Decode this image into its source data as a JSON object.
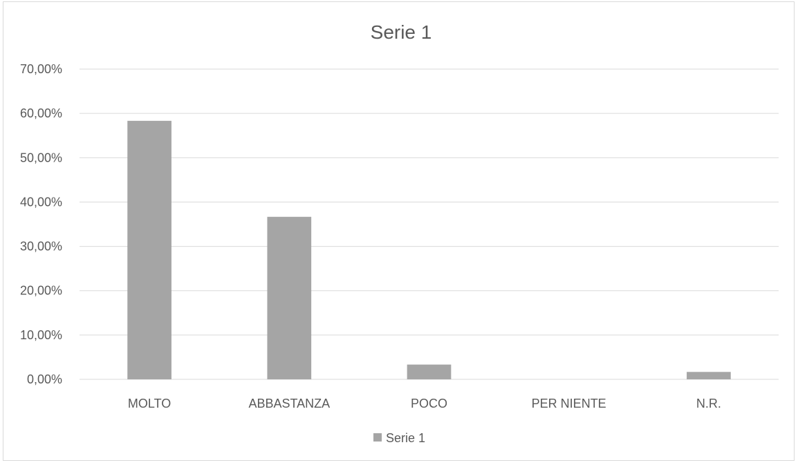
{
  "chart_data": {
    "type": "bar",
    "title": "Serie 1",
    "categories": [
      "MOLTO",
      "ABBASTANZA",
      "POCO",
      "PER NIENTE",
      "N.R."
    ],
    "series": [
      {
        "name": "Serie 1",
        "values": [
          58.33,
          36.67,
          3.33,
          0.0,
          1.67
        ],
        "color": "#a5a5a5"
      }
    ],
    "ylim": [
      0,
      70
    ],
    "yticks": [
      0,
      10,
      20,
      30,
      40,
      50,
      60,
      70
    ],
    "ytick_labels": [
      "0,00%",
      "10,00%",
      "20,00%",
      "30,00%",
      "40,00%",
      "50,00%",
      "60,00%",
      "70,00%"
    ],
    "xlabel": "",
    "ylabel": "",
    "grid": true,
    "legend": "bottom"
  }
}
